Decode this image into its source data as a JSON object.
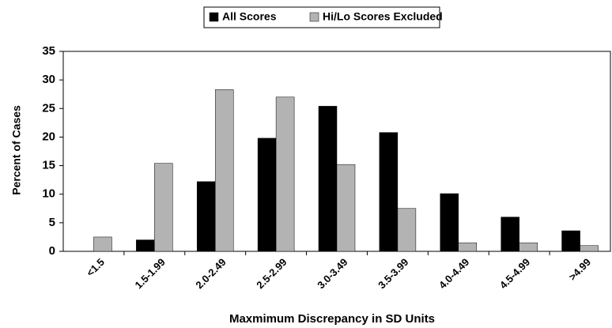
{
  "chart_data": {
    "type": "bar",
    "xlabel": "Maxmimum Discrepancy in SD Units",
    "ylabel": "Percent of Cases",
    "categories": [
      "<1.5",
      "1.5-1.99",
      "2.0-2.49",
      "2.5-2.99",
      "3.0-3.49",
      "3.5-3.99",
      "4.0-4.49",
      "4.5-4.99",
      ">4.99"
    ],
    "series": [
      {
        "name": "All Scores",
        "color": "#000000",
        "values": [
          0,
          2,
          12.2,
          19.8,
          25.4,
          20.8,
          10.1,
          6,
          3.6
        ]
      },
      {
        "name": "Hi/Lo Scores Excluded",
        "color": "#b3b3b3",
        "values": [
          2.5,
          15.4,
          28.3,
          27,
          15.2,
          7.5,
          1.5,
          1.5,
          1.0
        ]
      }
    ],
    "ylim": [
      0,
      35
    ],
    "yticks": [
      0,
      5,
      10,
      15,
      20,
      25,
      30,
      35
    ],
    "grid": false,
    "legend": "top"
  }
}
